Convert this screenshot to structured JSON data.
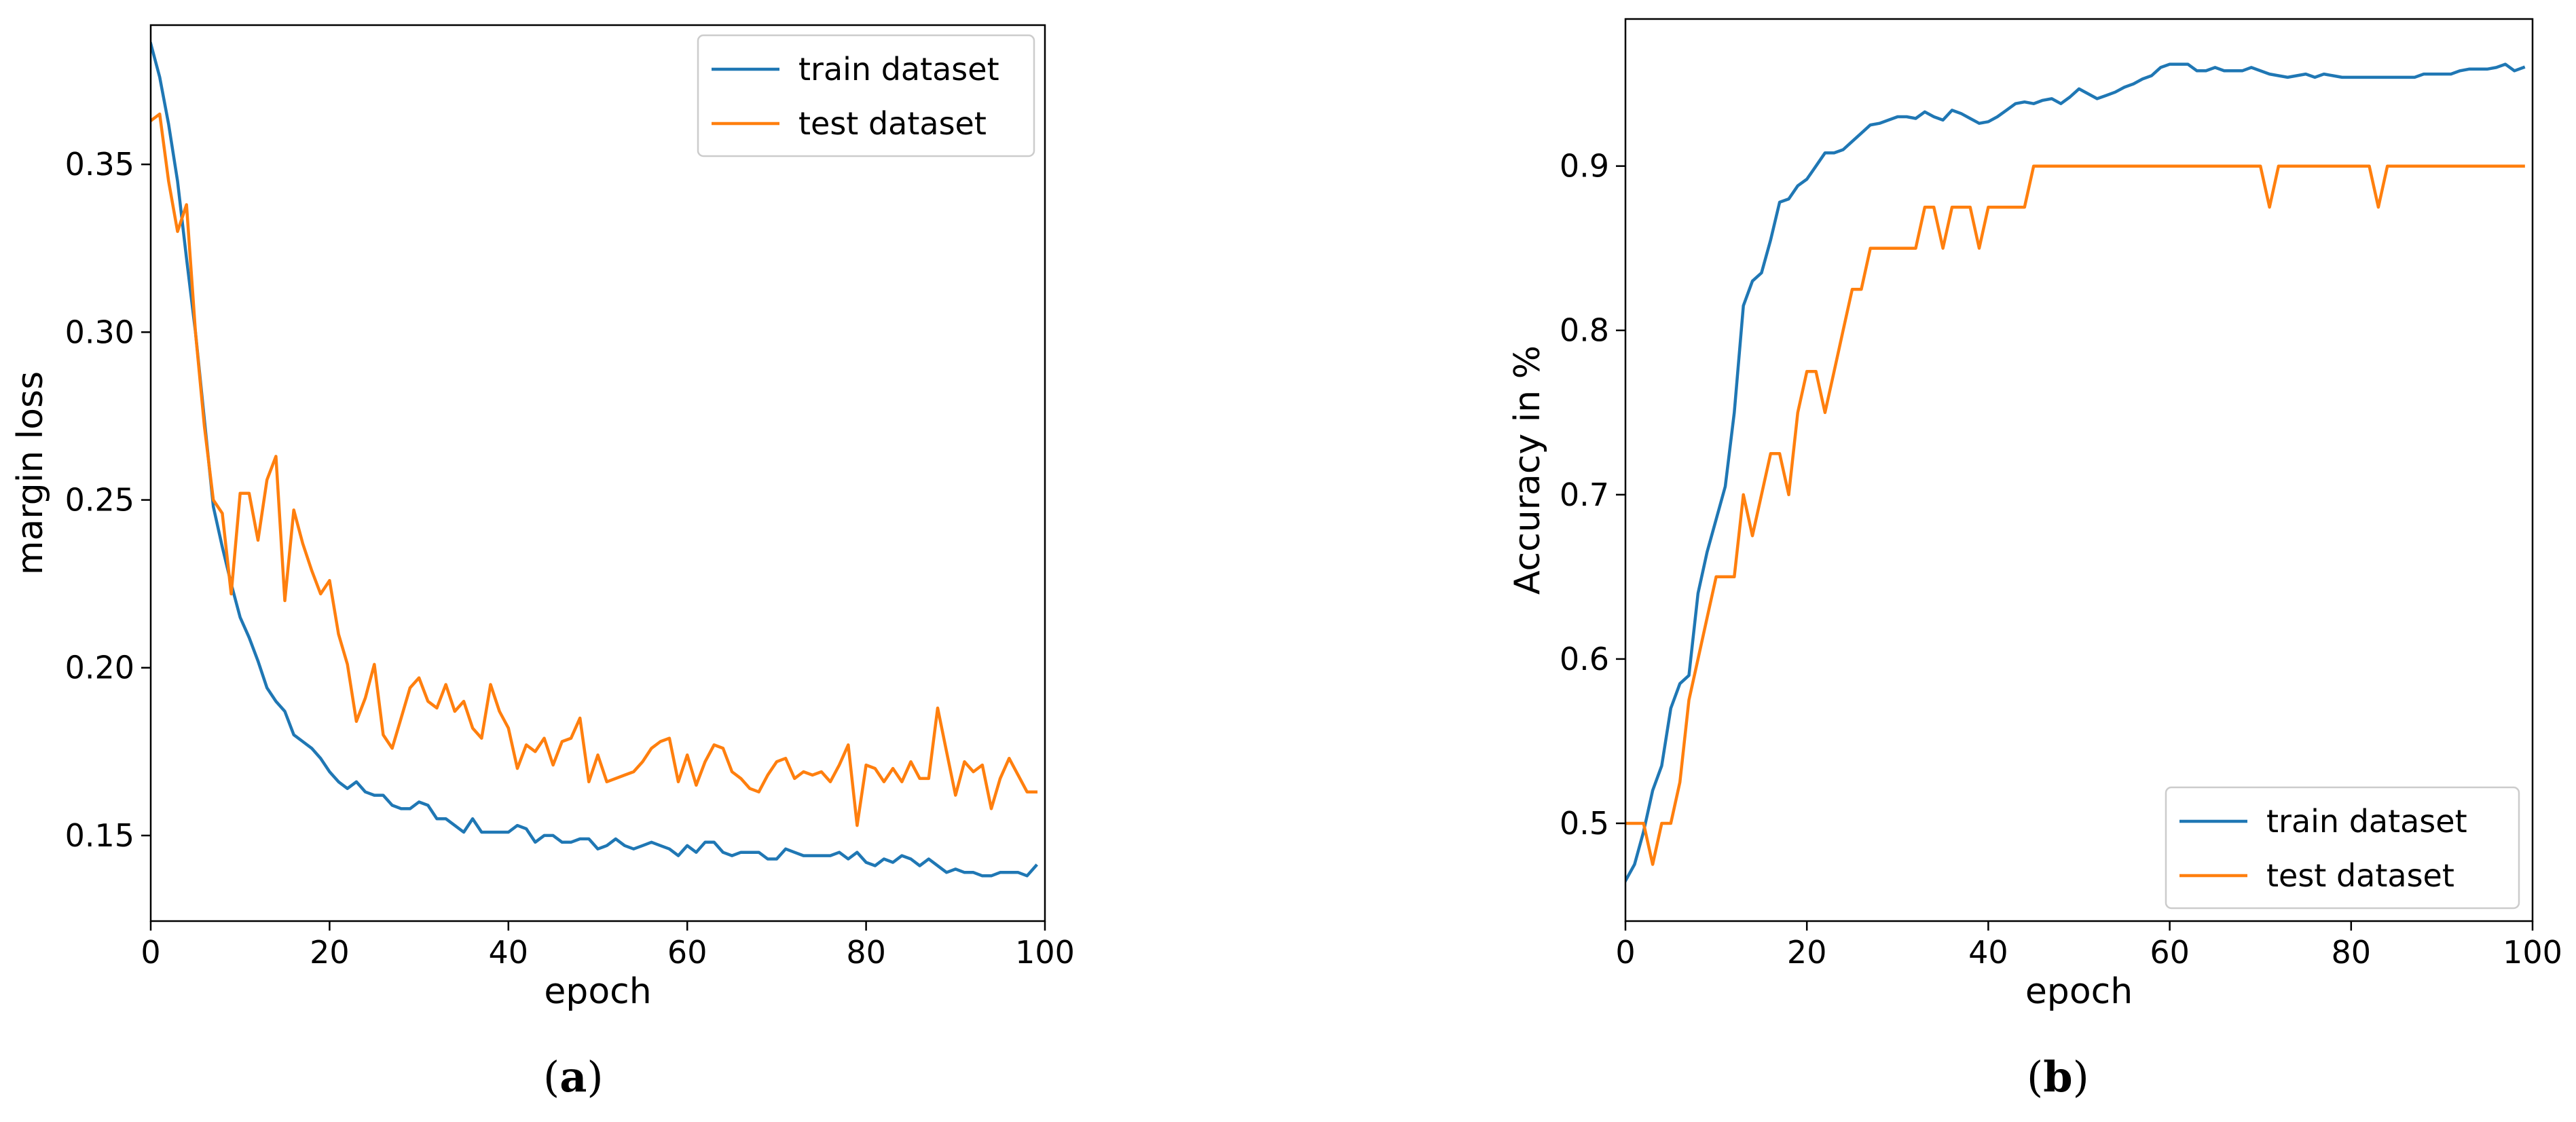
{
  "chart_data": [
    {
      "type": "line",
      "panel_label": "a",
      "xlabel": "epoch",
      "ylabel": "margin loss",
      "xlim": [
        0,
        100
      ],
      "ylim": [
        0.1245,
        0.3915
      ],
      "xticks": [
        0,
        20,
        40,
        60,
        80,
        100
      ],
      "yticks": [
        0.15,
        0.2,
        0.25,
        0.3,
        0.35
      ],
      "grid": false,
      "legend_position": "upper right",
      "series": [
        {
          "name": "train dataset",
          "color": "#1f77b4",
          "x": [
            0,
            1,
            2,
            3,
            4,
            5,
            6,
            7,
            8,
            9,
            10,
            11,
            12,
            13,
            14,
            15,
            16,
            17,
            18,
            19,
            20,
            21,
            22,
            23,
            24,
            25,
            26,
            27,
            28,
            29,
            30,
            31,
            32,
            33,
            34,
            35,
            36,
            37,
            38,
            39,
            40,
            41,
            42,
            43,
            44,
            45,
            46,
            47,
            48,
            49,
            50,
            51,
            52,
            53,
            54,
            55,
            56,
            57,
            58,
            59,
            60,
            61,
            62,
            63,
            64,
            65,
            66,
            67,
            68,
            69,
            70,
            71,
            72,
            73,
            74,
            75,
            76,
            77,
            78,
            79,
            80,
            81,
            82,
            83,
            84,
            85,
            86,
            87,
            88,
            89,
            90,
            91,
            92,
            93,
            94,
            95,
            96,
            97,
            98,
            99
          ],
          "values": [
            0.386,
            0.376,
            0.362,
            0.345,
            0.322,
            0.3,
            0.274,
            0.248,
            0.236,
            0.225,
            0.215,
            0.209,
            0.202,
            0.194,
            0.19,
            0.187,
            0.18,
            0.178,
            0.176,
            0.173,
            0.169,
            0.166,
            0.164,
            0.166,
            0.163,
            0.162,
            0.162,
            0.159,
            0.158,
            0.158,
            0.16,
            0.159,
            0.155,
            0.155,
            0.153,
            0.151,
            0.155,
            0.151,
            0.151,
            0.151,
            0.151,
            0.153,
            0.152,
            0.148,
            0.15,
            0.15,
            0.148,
            0.148,
            0.149,
            0.149,
            0.146,
            0.147,
            0.149,
            0.147,
            0.146,
            0.147,
            0.148,
            0.147,
            0.146,
            0.144,
            0.147,
            0.145,
            0.148,
            0.148,
            0.145,
            0.144,
            0.145,
            0.145,
            0.145,
            0.143,
            0.143,
            0.146,
            0.145,
            0.144,
            0.144,
            0.144,
            0.144,
            0.145,
            0.143,
            0.145,
            0.142,
            0.141,
            0.143,
            0.142,
            0.144,
            0.143,
            0.141,
            0.143,
            0.141,
            0.139,
            0.14,
            0.139,
            0.139,
            0.138,
            0.138,
            0.139,
            0.139,
            0.139,
            0.138,
            0.141
          ]
        },
        {
          "name": "test dataset",
          "color": "#ff7f0e",
          "x": [
            0,
            1,
            2,
            3,
            4,
            5,
            6,
            7,
            8,
            9,
            10,
            11,
            12,
            13,
            14,
            15,
            16,
            17,
            18,
            19,
            20,
            21,
            22,
            23,
            24,
            25,
            26,
            27,
            28,
            29,
            30,
            31,
            32,
            33,
            34,
            35,
            36,
            37,
            38,
            39,
            40,
            41,
            42,
            43,
            44,
            45,
            46,
            47,
            48,
            49,
            50,
            51,
            52,
            53,
            54,
            55,
            56,
            57,
            58,
            59,
            60,
            61,
            62,
            63,
            64,
            65,
            66,
            67,
            68,
            69,
            70,
            71,
            72,
            73,
            74,
            75,
            76,
            77,
            78,
            79,
            80,
            81,
            82,
            83,
            84,
            85,
            86,
            87,
            88,
            89,
            90,
            91,
            92,
            93,
            94,
            95,
            96,
            97,
            98,
            99
          ],
          "values": [
            0.363,
            0.365,
            0.345,
            0.33,
            0.338,
            0.3,
            0.272,
            0.25,
            0.246,
            0.222,
            0.252,
            0.252,
            0.238,
            0.256,
            0.263,
            0.22,
            0.247,
            0.237,
            0.229,
            0.222,
            0.226,
            0.21,
            0.201,
            0.184,
            0.191,
            0.201,
            0.18,
            0.176,
            0.185,
            0.194,
            0.197,
            0.19,
            0.188,
            0.195,
            0.187,
            0.19,
            0.182,
            0.179,
            0.195,
            0.187,
            0.182,
            0.17,
            0.177,
            0.175,
            0.179,
            0.171,
            0.178,
            0.179,
            0.185,
            0.166,
            0.174,
            0.166,
            0.167,
            0.168,
            0.169,
            0.172,
            0.176,
            0.178,
            0.179,
            0.166,
            0.174,
            0.165,
            0.172,
            0.177,
            0.176,
            0.169,
            0.167,
            0.164,
            0.163,
            0.168,
            0.172,
            0.173,
            0.167,
            0.169,
            0.168,
            0.169,
            0.166,
            0.171,
            0.177,
            0.153,
            0.171,
            0.17,
            0.166,
            0.17,
            0.166,
            0.172,
            0.167,
            0.167,
            0.188,
            0.175,
            0.162,
            0.172,
            0.169,
            0.171,
            0.158,
            0.167,
            0.173,
            0.168,
            0.163,
            0.163
          ]
        }
      ]
    },
    {
      "type": "line",
      "panel_label": "b",
      "xlabel": "epoch",
      "ylabel": "Accuracy in %",
      "xlim": [
        0,
        100
      ],
      "ylim": [
        0.4405,
        0.9895
      ],
      "xticks": [
        0,
        20,
        40,
        60,
        80,
        100
      ],
      "yticks": [
        0.5,
        0.6,
        0.7,
        0.8,
        0.9
      ],
      "grid": false,
      "legend_position": "lower right",
      "series": [
        {
          "name": "train dataset",
          "color": "#1f77b4",
          "x": [
            0,
            1,
            2,
            3,
            4,
            5,
            6,
            7,
            8,
            9,
            10,
            11,
            12,
            13,
            14,
            15,
            16,
            17,
            18,
            19,
            20,
            21,
            22,
            23,
            24,
            25,
            26,
            27,
            28,
            29,
            30,
            31,
            32,
            33,
            34,
            35,
            36,
            37,
            38,
            39,
            40,
            41,
            42,
            43,
            44,
            45,
            46,
            47,
            48,
            49,
            50,
            51,
            52,
            53,
            54,
            55,
            56,
            57,
            58,
            59,
            60,
            61,
            62,
            63,
            64,
            65,
            66,
            67,
            68,
            69,
            70,
            71,
            72,
            73,
            74,
            75,
            76,
            77,
            78,
            79,
            80,
            81,
            82,
            83,
            84,
            85,
            86,
            87,
            88,
            89,
            90,
            91,
            92,
            93,
            94,
            95,
            96,
            97,
            98,
            99
          ],
          "values": [
            0.465,
            0.475,
            0.495,
            0.52,
            0.535,
            0.57,
            0.585,
            0.59,
            0.64,
            0.665,
            0.685,
            0.705,
            0.75,
            0.815,
            0.83,
            0.835,
            0.855,
            0.878,
            0.88,
            0.888,
            0.892,
            0.9,
            0.908,
            0.908,
            0.91,
            0.915,
            0.92,
            0.925,
            0.926,
            0.928,
            0.93,
            0.93,
            0.929,
            0.933,
            0.93,
            0.928,
            0.934,
            0.932,
            0.929,
            0.926,
            0.927,
            0.93,
            0.934,
            0.938,
            0.939,
            0.938,
            0.94,
            0.941,
            0.938,
            0.942,
            0.947,
            0.944,
            0.941,
            0.943,
            0.945,
            0.948,
            0.95,
            0.953,
            0.955,
            0.96,
            0.962,
            0.962,
            0.962,
            0.958,
            0.958,
            0.96,
            0.958,
            0.958,
            0.958,
            0.96,
            0.958,
            0.956,
            0.955,
            0.954,
            0.955,
            0.956,
            0.954,
            0.956,
            0.955,
            0.954,
            0.954,
            0.954,
            0.954,
            0.954,
            0.954,
            0.954,
            0.954,
            0.954,
            0.956,
            0.956,
            0.956,
            0.956,
            0.958,
            0.959,
            0.959,
            0.959,
            0.96,
            0.962,
            0.958,
            0.96
          ]
        },
        {
          "name": "test dataset",
          "color": "#ff7f0e",
          "x": [
            0,
            1,
            2,
            3,
            4,
            5,
            6,
            7,
            8,
            9,
            10,
            11,
            12,
            13,
            14,
            15,
            16,
            17,
            18,
            19,
            20,
            21,
            22,
            23,
            24,
            25,
            26,
            27,
            28,
            29,
            30,
            31,
            32,
            33,
            34,
            35,
            36,
            37,
            38,
            39,
            40,
            41,
            42,
            43,
            44,
            45,
            46,
            47,
            48,
            49,
            50,
            51,
            52,
            53,
            54,
            55,
            56,
            57,
            58,
            59,
            60,
            61,
            62,
            63,
            64,
            65,
            66,
            67,
            68,
            69,
            70,
            71,
            72,
            73,
            74,
            75,
            76,
            77,
            78,
            79,
            80,
            81,
            82,
            83,
            84,
            85,
            86,
            87,
            88,
            89,
            90,
            91,
            92,
            93,
            94,
            95,
            96,
            97,
            98,
            99
          ],
          "values": [
            0.5,
            0.5,
            0.5,
            0.475,
            0.5,
            0.5,
            0.525,
            0.575,
            0.6,
            0.625,
            0.65,
            0.65,
            0.65,
            0.7,
            0.675,
            0.7,
            0.725,
            0.725,
            0.7,
            0.75,
            0.775,
            0.775,
            0.75,
            0.775,
            0.8,
            0.825,
            0.825,
            0.85,
            0.85,
            0.85,
            0.85,
            0.85,
            0.85,
            0.875,
            0.875,
            0.85,
            0.875,
            0.875,
            0.875,
            0.85,
            0.875,
            0.875,
            0.875,
            0.875,
            0.875,
            0.9,
            0.9,
            0.9,
            0.9,
            0.9,
            0.9,
            0.9,
            0.9,
            0.9,
            0.9,
            0.9,
            0.9,
            0.9,
            0.9,
            0.9,
            0.9,
            0.9,
            0.9,
            0.9,
            0.9,
            0.9,
            0.9,
            0.9,
            0.9,
            0.9,
            0.9,
            0.875,
            0.9,
            0.9,
            0.9,
            0.9,
            0.9,
            0.9,
            0.9,
            0.9,
            0.9,
            0.9,
            0.9,
            0.875,
            0.9,
            0.9,
            0.9,
            0.9,
            0.9,
            0.9,
            0.9,
            0.9,
            0.9,
            0.9,
            0.9,
            0.9,
            0.9,
            0.9,
            0.9,
            0.9
          ]
        }
      ]
    }
  ]
}
